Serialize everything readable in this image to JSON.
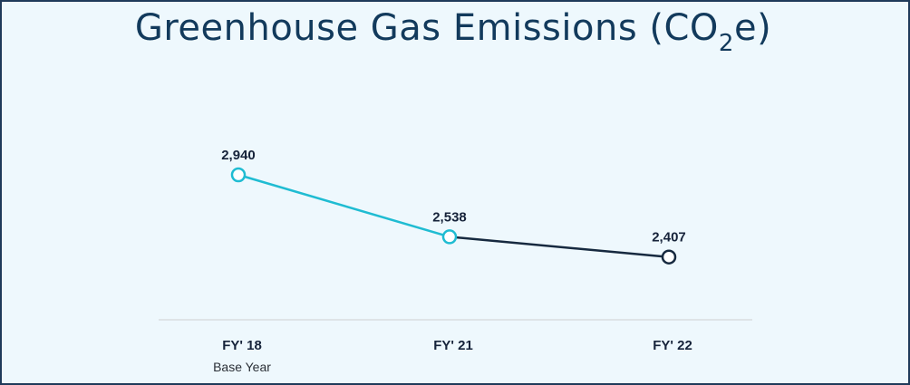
{
  "title": {
    "main": "Greenhouse Gas Emissions (CO",
    "subscript": "2",
    "tail": "e)"
  },
  "colors": {
    "accent": "#1fbcd2",
    "dark": "#16293f",
    "axis": "#d9dde0",
    "background": "#eef8fd"
  },
  "chart_data": {
    "type": "line",
    "title": "Greenhouse Gas Emissions (CO2e)",
    "categories": [
      "FY' 18",
      "FY' 21",
      "FY' 22"
    ],
    "category_sublabels": [
      "Base Year",
      "",
      ""
    ],
    "values": [
      2940,
      2538,
      2407
    ],
    "data_labels": [
      "2,940",
      "2,538",
      "2,407"
    ],
    "xlabel": "",
    "ylabel": "",
    "ylim": [
      2000,
      3300
    ],
    "grid": false,
    "segment_colors": [
      "#1fbcd2",
      "#16293f"
    ]
  }
}
